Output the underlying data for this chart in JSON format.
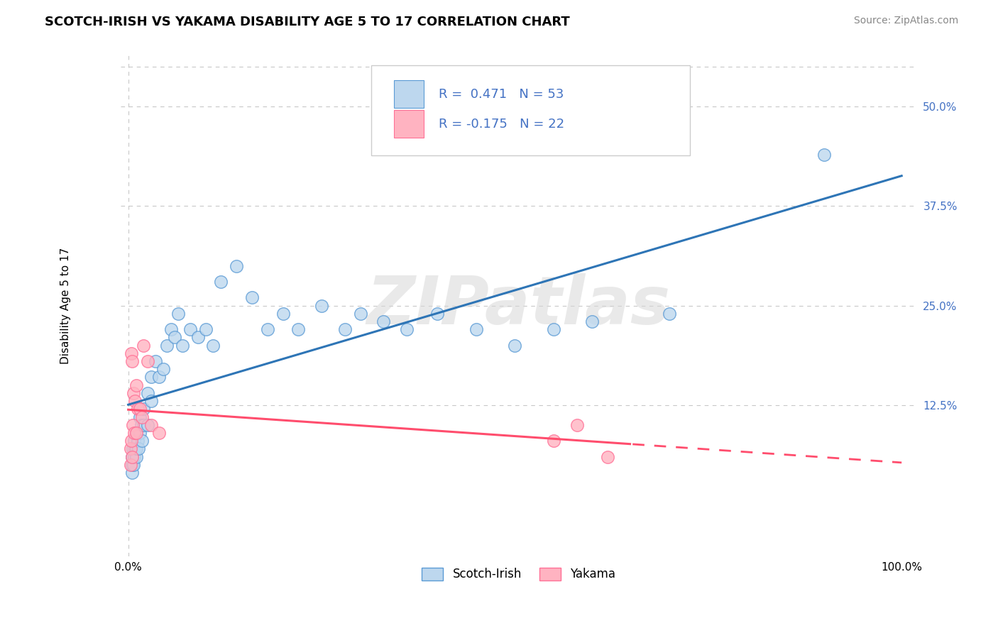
{
  "title": "SCOTCH-IRISH VS YAKAMA DISABILITY AGE 5 TO 17 CORRELATION CHART",
  "source": "Source: ZipAtlas.com",
  "ylabel": "Disability Age 5 to 17",
  "xlim": [
    -0.01,
    1.02
  ],
  "ylim": [
    -0.065,
    0.565
  ],
  "ytick_positions": [
    0.125,
    0.25,
    0.375,
    0.5
  ],
  "xtick_positions": [
    0.0,
    1.0
  ],
  "scotch_irish_R": 0.471,
  "scotch_irish_N": 53,
  "yakama_R": -0.175,
  "yakama_N": 22,
  "blue_fill": "#BDD7EE",
  "blue_edge": "#5B9BD5",
  "pink_fill": "#FFB3C1",
  "pink_edge": "#FF7096",
  "trend_blue": "#2E75B6",
  "trend_pink": "#FF4D6D",
  "legend_text_blue": "#4472C4",
  "scotch_irish_x": [
    0.005,
    0.005,
    0.005,
    0.006,
    0.007,
    0.008,
    0.008,
    0.009,
    0.01,
    0.01,
    0.01,
    0.012,
    0.013,
    0.015,
    0.015,
    0.017,
    0.018,
    0.02,
    0.02,
    0.025,
    0.025,
    0.03,
    0.03,
    0.035,
    0.04,
    0.045,
    0.05,
    0.055,
    0.06,
    0.065,
    0.07,
    0.08,
    0.09,
    0.1,
    0.11,
    0.12,
    0.14,
    0.16,
    0.18,
    0.2,
    0.22,
    0.25,
    0.28,
    0.3,
    0.33,
    0.36,
    0.4,
    0.45,
    0.5,
    0.55,
    0.6,
    0.7,
    0.9
  ],
  "scotch_irish_y": [
    0.04,
    0.05,
    0.06,
    0.07,
    0.05,
    0.06,
    0.08,
    0.07,
    0.06,
    0.07,
    0.09,
    0.08,
    0.07,
    0.09,
    0.11,
    0.1,
    0.08,
    0.1,
    0.12,
    0.1,
    0.14,
    0.13,
    0.16,
    0.18,
    0.16,
    0.17,
    0.2,
    0.22,
    0.21,
    0.24,
    0.2,
    0.22,
    0.21,
    0.22,
    0.2,
    0.28,
    0.3,
    0.26,
    0.22,
    0.24,
    0.22,
    0.25,
    0.22,
    0.24,
    0.23,
    0.22,
    0.24,
    0.22,
    0.2,
    0.22,
    0.23,
    0.24,
    0.44
  ],
  "yakama_x": [
    0.003,
    0.003,
    0.004,
    0.004,
    0.005,
    0.005,
    0.006,
    0.007,
    0.008,
    0.009,
    0.01,
    0.01,
    0.012,
    0.015,
    0.018,
    0.02,
    0.025,
    0.03,
    0.04,
    0.55,
    0.58,
    0.62
  ],
  "yakama_y": [
    0.05,
    0.07,
    0.19,
    0.08,
    0.06,
    0.18,
    0.1,
    0.14,
    0.09,
    0.13,
    0.09,
    0.15,
    0.12,
    0.12,
    0.11,
    0.2,
    0.18,
    0.1,
    0.09,
    0.08,
    0.1,
    0.06
  ]
}
